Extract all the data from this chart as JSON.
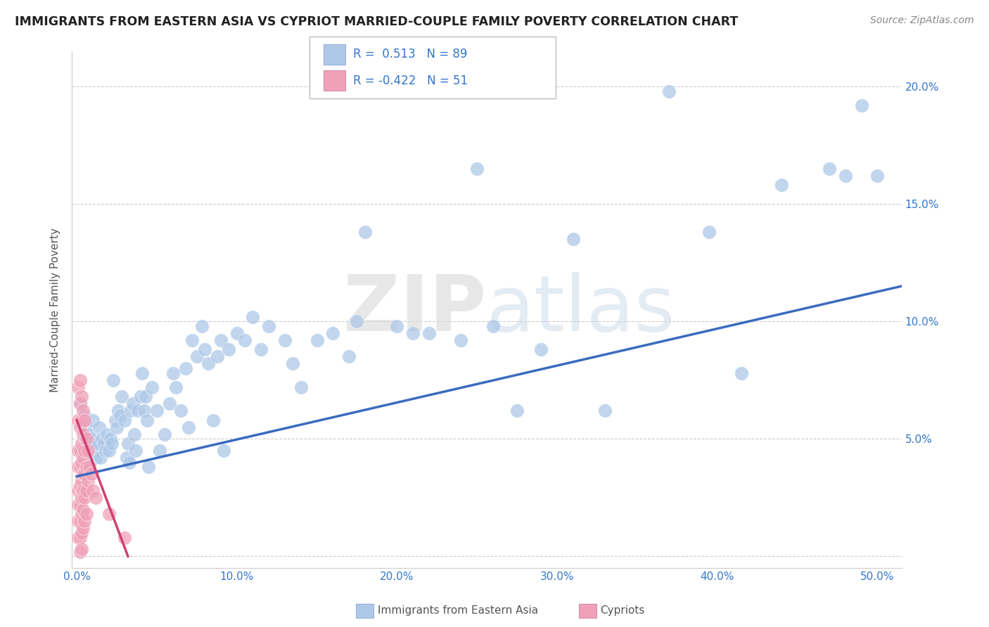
{
  "title": "IMMIGRANTS FROM EASTERN ASIA VS CYPRIOT MARRIED-COUPLE FAMILY POVERTY CORRELATION CHART",
  "source": "Source: ZipAtlas.com",
  "ylabel": "Married-Couple Family Poverty",
  "legend_label1": "Immigrants from Eastern Asia",
  "legend_label2": "Cypriots",
  "r1": 0.513,
  "n1": 89,
  "r2": -0.422,
  "n2": 51,
  "xlim": [
    -0.003,
    0.515
  ],
  "ylim": [
    -0.005,
    0.215
  ],
  "xticks": [
    0.0,
    0.1,
    0.2,
    0.3,
    0.4,
    0.5
  ],
  "xtick_labels": [
    "0.0%",
    "10.0%",
    "20.0%",
    "30.0%",
    "40.0%",
    "50.0%"
  ],
  "yticks": [
    0.0,
    0.05,
    0.1,
    0.15,
    0.2
  ],
  "ytick_labels_right": [
    "",
    "5.0%",
    "10.0%",
    "15.0%",
    "20.0%"
  ],
  "color_blue": "#adc8e8",
  "color_blue_line": "#3a6bbf",
  "color_pink": "#f0a0b8",
  "color_pink_line": "#d04070",
  "watermark_zip": "ZIP",
  "watermark_atlas": "atlas",
  "blue_scatter": [
    [
      0.002,
      0.065
    ],
    [
      0.004,
      0.058
    ],
    [
      0.005,
      0.06
    ],
    [
      0.006,
      0.055
    ],
    [
      0.007,
      0.052
    ],
    [
      0.008,
      0.048
    ],
    [
      0.009,
      0.05
    ],
    [
      0.01,
      0.058
    ],
    [
      0.011,
      0.045
    ],
    [
      0.012,
      0.042
    ],
    [
      0.013,
      0.048
    ],
    [
      0.014,
      0.055
    ],
    [
      0.015,
      0.042
    ],
    [
      0.016,
      0.05
    ],
    [
      0.017,
      0.048
    ],
    [
      0.018,
      0.045
    ],
    [
      0.019,
      0.052
    ],
    [
      0.02,
      0.045
    ],
    [
      0.021,
      0.05
    ],
    [
      0.022,
      0.048
    ],
    [
      0.023,
      0.075
    ],
    [
      0.024,
      0.058
    ],
    [
      0.025,
      0.055
    ],
    [
      0.026,
      0.062
    ],
    [
      0.027,
      0.06
    ],
    [
      0.028,
      0.068
    ],
    [
      0.03,
      0.058
    ],
    [
      0.031,
      0.042
    ],
    [
      0.032,
      0.048
    ],
    [
      0.033,
      0.04
    ],
    [
      0.034,
      0.062
    ],
    [
      0.035,
      0.065
    ],
    [
      0.036,
      0.052
    ],
    [
      0.037,
      0.045
    ],
    [
      0.038,
      0.062
    ],
    [
      0.04,
      0.068
    ],
    [
      0.041,
      0.078
    ],
    [
      0.042,
      0.062
    ],
    [
      0.043,
      0.068
    ],
    [
      0.044,
      0.058
    ],
    [
      0.045,
      0.038
    ],
    [
      0.047,
      0.072
    ],
    [
      0.05,
      0.062
    ],
    [
      0.052,
      0.045
    ],
    [
      0.055,
      0.052
    ],
    [
      0.058,
      0.065
    ],
    [
      0.06,
      0.078
    ],
    [
      0.062,
      0.072
    ],
    [
      0.065,
      0.062
    ],
    [
      0.068,
      0.08
    ],
    [
      0.07,
      0.055
    ],
    [
      0.072,
      0.092
    ],
    [
      0.075,
      0.085
    ],
    [
      0.078,
      0.098
    ],
    [
      0.08,
      0.088
    ],
    [
      0.082,
      0.082
    ],
    [
      0.085,
      0.058
    ],
    [
      0.088,
      0.085
    ],
    [
      0.09,
      0.092
    ],
    [
      0.092,
      0.045
    ],
    [
      0.095,
      0.088
    ],
    [
      0.1,
      0.095
    ],
    [
      0.105,
      0.092
    ],
    [
      0.11,
      0.102
    ],
    [
      0.115,
      0.088
    ],
    [
      0.12,
      0.098
    ],
    [
      0.13,
      0.092
    ],
    [
      0.135,
      0.082
    ],
    [
      0.14,
      0.072
    ],
    [
      0.15,
      0.092
    ],
    [
      0.16,
      0.095
    ],
    [
      0.17,
      0.085
    ],
    [
      0.175,
      0.1
    ],
    [
      0.18,
      0.138
    ],
    [
      0.2,
      0.098
    ],
    [
      0.21,
      0.095
    ],
    [
      0.22,
      0.095
    ],
    [
      0.24,
      0.092
    ],
    [
      0.25,
      0.165
    ],
    [
      0.26,
      0.098
    ],
    [
      0.275,
      0.062
    ],
    [
      0.29,
      0.088
    ],
    [
      0.31,
      0.135
    ],
    [
      0.33,
      0.062
    ],
    [
      0.37,
      0.198
    ],
    [
      0.395,
      0.138
    ],
    [
      0.415,
      0.078
    ],
    [
      0.44,
      0.158
    ],
    [
      0.47,
      0.165
    ],
    [
      0.48,
      0.162
    ],
    [
      0.49,
      0.192
    ],
    [
      0.5,
      0.162
    ]
  ],
  "pink_scatter": [
    [
      0.001,
      0.072
    ],
    [
      0.001,
      0.058
    ],
    [
      0.001,
      0.045
    ],
    [
      0.001,
      0.038
    ],
    [
      0.001,
      0.028
    ],
    [
      0.001,
      0.022
    ],
    [
      0.001,
      0.015
    ],
    [
      0.001,
      0.008
    ],
    [
      0.002,
      0.075
    ],
    [
      0.002,
      0.065
    ],
    [
      0.002,
      0.055
    ],
    [
      0.002,
      0.045
    ],
    [
      0.002,
      0.038
    ],
    [
      0.002,
      0.03
    ],
    [
      0.002,
      0.022
    ],
    [
      0.002,
      0.015
    ],
    [
      0.002,
      0.008
    ],
    [
      0.002,
      0.002
    ],
    [
      0.003,
      0.068
    ],
    [
      0.003,
      0.058
    ],
    [
      0.003,
      0.048
    ],
    [
      0.003,
      0.04
    ],
    [
      0.003,
      0.032
    ],
    [
      0.003,
      0.025
    ],
    [
      0.003,
      0.018
    ],
    [
      0.003,
      0.01
    ],
    [
      0.003,
      0.003
    ],
    [
      0.004,
      0.062
    ],
    [
      0.004,
      0.052
    ],
    [
      0.004,
      0.042
    ],
    [
      0.004,
      0.035
    ],
    [
      0.004,
      0.028
    ],
    [
      0.004,
      0.02
    ],
    [
      0.004,
      0.012
    ],
    [
      0.005,
      0.058
    ],
    [
      0.005,
      0.045
    ],
    [
      0.005,
      0.035
    ],
    [
      0.005,
      0.025
    ],
    [
      0.005,
      0.015
    ],
    [
      0.006,
      0.05
    ],
    [
      0.006,
      0.038
    ],
    [
      0.006,
      0.028
    ],
    [
      0.006,
      0.018
    ],
    [
      0.007,
      0.045
    ],
    [
      0.007,
      0.032
    ],
    [
      0.008,
      0.038
    ],
    [
      0.009,
      0.035
    ],
    [
      0.01,
      0.028
    ],
    [
      0.012,
      0.025
    ],
    [
      0.02,
      0.018
    ],
    [
      0.03,
      0.008
    ]
  ],
  "blue_line_x": [
    0.0,
    0.515
  ],
  "blue_line_y": [
    0.034,
    0.115
  ],
  "pink_line_x": [
    0.0,
    0.032
  ],
  "pink_line_y": [
    0.058,
    0.0
  ]
}
